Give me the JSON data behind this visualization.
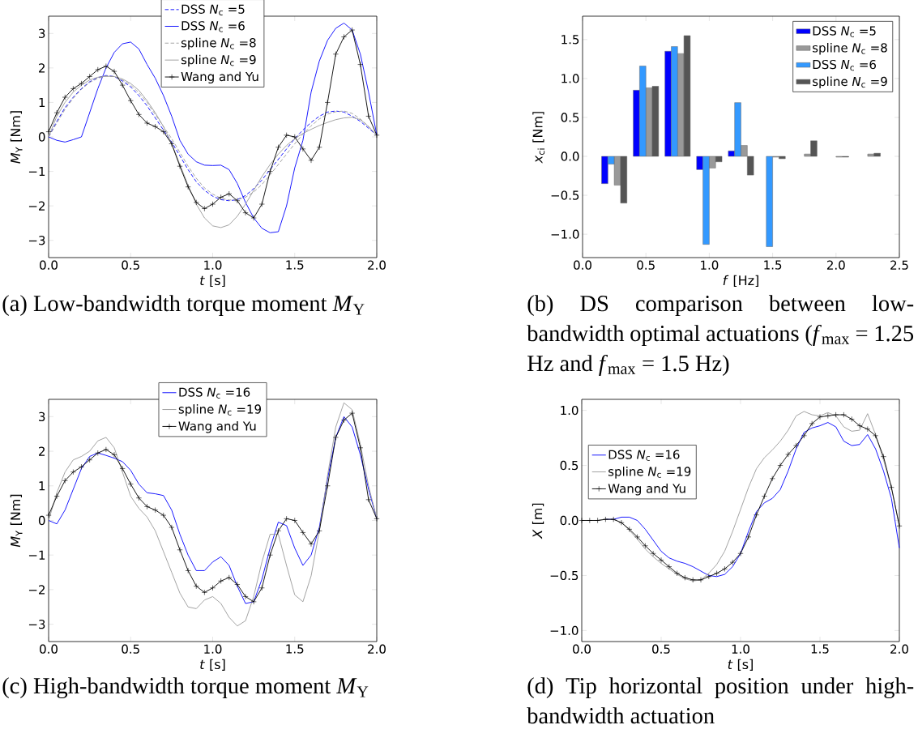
{
  "chart_data": [
    {
      "type": "line",
      "xlabel": "*t* [s]",
      "ylabel": "*M*$_{Y}$ [Nm]",
      "annotations": [
        "(a) Low-bandwidth torque moment *M*$_{Y}$"
      ],
      "xlim": [
        0,
        2
      ],
      "ylim": [
        -3.5,
        3.5
      ],
      "xticks": [
        {
          "value": 0,
          "label": "0.0"
        },
        {
          "value": 0.5,
          "label": "0.5"
        },
        {
          "value": 1,
          "label": "1.0"
        },
        {
          "value": 1.5,
          "label": "1.5"
        },
        {
          "value": 2,
          "label": "2.0"
        }
      ],
      "yticks": [
        {
          "value": -3,
          "label": "−3"
        },
        {
          "value": -2,
          "label": "−2"
        },
        {
          "value": -1,
          "label": "−1"
        },
        {
          "value": 0,
          "label": "0"
        },
        {
          "value": 1,
          "label": "1"
        },
        {
          "value": 2,
          "label": "2"
        },
        {
          "value": 3,
          "label": "3"
        }
      ],
      "legend": "top",
      "x": [
        0,
        0.05,
        0.1,
        0.15,
        0.2,
        0.25,
        0.3,
        0.35,
        0.4,
        0.45,
        0.5,
        0.55,
        0.6,
        0.65,
        0.7,
        0.75,
        0.8,
        0.85,
        0.9,
        0.95,
        1.0,
        1.05,
        1.1,
        1.15,
        1.2,
        1.25,
        1.3,
        1.35,
        1.4,
        1.45,
        1.5,
        1.55,
        1.6,
        1.65,
        1.7,
        1.75,
        1.8,
        1.85,
        1.9,
        1.95,
        2.0
      ],
      "series": [
        {
          "name": "DSS *N*$_{c}$ =5",
          "color": "#0000ff",
          "line_style": "dashed",
          "values": [
            0,
            0.45,
            0.85,
            1.15,
            1.4,
            1.6,
            1.72,
            1.78,
            1.75,
            1.62,
            1.45,
            1.2,
            0.9,
            0.55,
            0.2,
            -0.15,
            -0.55,
            -0.95,
            -1.3,
            -1.55,
            -1.72,
            -1.82,
            -1.85,
            -1.82,
            -1.7,
            -1.5,
            -1.25,
            -0.95,
            -0.65,
            -0.35,
            -0.05,
            0.2,
            0.42,
            0.6,
            0.72,
            0.75,
            0.72,
            0.6,
            0.45,
            0.25,
            0.05
          ]
        },
        {
          "name": "DSS *N*$_{c}$ =6",
          "color": "#0000ff",
          "line_style": "solid",
          "values": [
            0,
            -0.1,
            -0.15,
            -0.08,
            0.0,
            0.7,
            1.4,
            2.0,
            2.45,
            2.7,
            2.75,
            2.55,
            2.1,
            1.7,
            1.2,
            0.6,
            -0.1,
            -0.5,
            -0.72,
            -0.82,
            -0.83,
            -0.82,
            -0.95,
            -1.35,
            -1.9,
            -2.35,
            -2.65,
            -2.78,
            -2.75,
            -2.0,
            -0.9,
            -0.1,
            1.3,
            2.2,
            2.8,
            3.15,
            3.3,
            3.1,
            2.4,
            1.3,
            0.05
          ]
        },
        {
          "name": "spline *N*$_{c}$ =8",
          "color": "#999999",
          "line_style": "dashed",
          "values": [
            0,
            0.4,
            0.8,
            1.12,
            1.38,
            1.58,
            1.7,
            1.76,
            1.75,
            1.65,
            1.5,
            1.28,
            1.0,
            0.65,
            0.3,
            -0.05,
            -0.45,
            -0.85,
            -1.2,
            -1.48,
            -1.66,
            -1.78,
            -1.83,
            -1.82,
            -1.75,
            -1.6,
            -1.38,
            -1.1,
            -0.8,
            -0.5,
            -0.2,
            0.08,
            0.32,
            0.52,
            0.66,
            0.73,
            0.75,
            0.68,
            0.52,
            0.3,
            0.05
          ]
        },
        {
          "name": "spline *N*$_{c}$ =9",
          "color": "#999999",
          "line_style": "solid",
          "values": [
            0,
            0.6,
            1.0,
            1.3,
            1.5,
            1.65,
            1.73,
            1.76,
            1.75,
            1.68,
            1.55,
            1.35,
            1.05,
            0.7,
            0.3,
            -0.2,
            -0.8,
            -1.4,
            -1.95,
            -2.35,
            -2.58,
            -2.63,
            -2.55,
            -2.3,
            -1.95,
            -1.55,
            -1.15,
            -0.8,
            -0.5,
            -0.25,
            -0.05,
            0.1,
            0.22,
            0.33,
            0.42,
            0.5,
            0.55,
            0.57,
            0.5,
            0.3,
            0.05
          ]
        },
        {
          "name": "Wang and Yu",
          "color": "#000000",
          "line_style": "solid",
          "marker": "cross",
          "values": [
            0.15,
            0.7,
            1.15,
            1.4,
            1.55,
            1.75,
            1.95,
            2.05,
            1.9,
            1.5,
            1.05,
            0.65,
            0.4,
            0.3,
            0.15,
            -0.2,
            -0.85,
            -1.45,
            -1.9,
            -2.08,
            -1.95,
            -1.75,
            -1.65,
            -1.85,
            -2.2,
            -2.35,
            -1.95,
            -1.0,
            -0.3,
            0.05,
            0.0,
            -0.35,
            -0.68,
            -0.3,
            1.0,
            2.4,
            2.9,
            3.1,
            2.1,
            0.6,
            0.05
          ]
        }
      ]
    },
    {
      "type": "bar",
      "xlabel": "*f* [Hz]",
      "ylabel": "*x*$_{ci}$ [Nm]",
      "annotations": [
        "(b) DS comparison between low-bandwidth optimal actuations (*f*$_{max}$ = 1.25 Hz and *f*$_{max}$ = 1.5 Hz)"
      ],
      "xlim": [
        0,
        2.5
      ],
      "ylim": [
        -1.3,
        1.8
      ],
      "xticks": [
        {
          "value": 0,
          "label": "0.0"
        },
        {
          "value": 0.5,
          "label": "0.5"
        },
        {
          "value": 1,
          "label": "1.0"
        },
        {
          "value": 1.5,
          "label": "1.5"
        },
        {
          "value": 2,
          "label": "2.0"
        },
        {
          "value": 2.5,
          "label": "2.5"
        }
      ],
      "yticks": [
        {
          "value": -1,
          "label": "−1.0"
        },
        {
          "value": -0.5,
          "label": "−0.5"
        },
        {
          "value": 0,
          "label": "0.0"
        },
        {
          "value": 0.5,
          "label": "0.5"
        },
        {
          "value": 1,
          "label": "1.0"
        },
        {
          "value": 1.5,
          "label": "1.5"
        }
      ],
      "legend": "top right",
      "series": [
        {
          "name": "DSS *N*$_{c}$ =5",
          "color": "#0000ff",
          "x": [
            0.175,
            0.425,
            0.675,
            0.925,
            1.175
          ],
          "values": [
            -0.35,
            0.85,
            1.35,
            -0.17,
            0.07
          ]
        },
        {
          "name": "spline *N*$_{c}$ =8",
          "color": "#999999",
          "x": [
            0.275,
            0.525,
            0.775,
            1.025,
            1.275,
            1.525,
            1.775,
            2.025,
            2.275
          ],
          "values": [
            -0.37,
            0.88,
            1.32,
            -0.15,
            0.14,
            -0.01,
            0.03,
            -0.01,
            0.03
          ]
        },
        {
          "name": "DSS *N*$_{c}$ =6",
          "color": "#3399ff",
          "x": [
            0.225,
            0.475,
            0.725,
            0.975,
            1.225,
            1.475
          ],
          "values": [
            -0.1,
            1.16,
            1.41,
            -1.13,
            0.69,
            -1.16
          ]
        },
        {
          "name": "spline *N*$_{c}$ =9",
          "color": "#555555",
          "x": [
            0.325,
            0.575,
            0.825,
            1.075,
            1.325,
            1.575,
            1.825,
            2.075,
            2.325
          ],
          "values": [
            -0.6,
            0.9,
            1.55,
            -0.07,
            -0.24,
            -0.03,
            0.2,
            -0.01,
            0.04
          ]
        }
      ]
    },
    {
      "type": "line",
      "xlabel": "*t* [s]",
      "ylabel": "*M*$_{Y}$ [Nm]",
      "annotations": [
        "(c) High-bandwidth torque moment *M*$_{Y}$"
      ],
      "xlim": [
        0,
        2
      ],
      "ylim": [
        -3.5,
        3.5
      ],
      "xticks": [
        {
          "value": 0,
          "label": "0.0"
        },
        {
          "value": 0.5,
          "label": "0.5"
        },
        {
          "value": 1,
          "label": "1.0"
        },
        {
          "value": 1.5,
          "label": "1.5"
        },
        {
          "value": 2,
          "label": "2.0"
        }
      ],
      "yticks": [
        {
          "value": -3,
          "label": "−3"
        },
        {
          "value": -2,
          "label": "−2"
        },
        {
          "value": -1,
          "label": "−1"
        },
        {
          "value": 0,
          "label": "0"
        },
        {
          "value": 1,
          "label": "1"
        },
        {
          "value": 2,
          "label": "2"
        },
        {
          "value": 3,
          "label": "3"
        }
      ],
      "legend": "top",
      "x": [
        0,
        0.05,
        0.1,
        0.15,
        0.2,
        0.25,
        0.3,
        0.35,
        0.4,
        0.45,
        0.5,
        0.55,
        0.6,
        0.65,
        0.7,
        0.75,
        0.8,
        0.85,
        0.9,
        0.95,
        1.0,
        1.05,
        1.1,
        1.15,
        1.2,
        1.25,
        1.3,
        1.35,
        1.4,
        1.45,
        1.5,
        1.55,
        1.6,
        1.65,
        1.7,
        1.75,
        1.8,
        1.85,
        1.9,
        1.95,
        2.0
      ],
      "series": [
        {
          "name": "DSS *N*$_{c}$ =16",
          "color": "#0000ff",
          "values": [
            0,
            -0.1,
            0.3,
            0.9,
            1.5,
            1.85,
            1.95,
            1.88,
            1.8,
            1.7,
            1.45,
            1.05,
            0.8,
            0.77,
            0.72,
            0.3,
            -0.4,
            -1.0,
            -1.45,
            -1.45,
            -1.2,
            -1.05,
            -1.3,
            -1.9,
            -2.4,
            -2.35,
            -1.7,
            -0.8,
            -0.05,
            -0.15,
            -0.8,
            -1.3,
            -1.0,
            -0.2,
            1.2,
            2.4,
            3.0,
            2.7,
            1.9,
            0.9,
            0.05
          ]
        },
        {
          "name": "spline *N*$_{c}$ =19",
          "color": "#999999",
          "values": [
            0,
            0.8,
            1.4,
            1.75,
            1.85,
            2.0,
            2.3,
            2.4,
            2.1,
            1.4,
            0.7,
            0.35,
            0.1,
            -0.3,
            -0.9,
            -1.5,
            -2.1,
            -2.5,
            -2.55,
            -2.3,
            -2.2,
            -2.4,
            -2.8,
            -3.05,
            -2.9,
            -2.2,
            -1.2,
            -0.4,
            -0.4,
            -1.3,
            -2.15,
            -2.35,
            -1.6,
            -0.3,
            1.3,
            2.7,
            3.4,
            3.2,
            2.2,
            1.0,
            0.05
          ]
        },
        {
          "name": "Wang and Yu",
          "color": "#000000",
          "marker": "cross",
          "values": [
            0.15,
            0.7,
            1.15,
            1.4,
            1.55,
            1.75,
            1.95,
            2.05,
            1.9,
            1.5,
            1.05,
            0.65,
            0.4,
            0.3,
            0.15,
            -0.2,
            -0.85,
            -1.45,
            -1.9,
            -2.08,
            -1.95,
            -1.75,
            -1.65,
            -1.85,
            -2.2,
            -2.35,
            -1.95,
            -1.0,
            -0.3,
            0.05,
            0.0,
            -0.35,
            -0.68,
            -0.3,
            1.0,
            2.4,
            2.9,
            3.1,
            2.1,
            0.6,
            0.05
          ]
        }
      ]
    },
    {
      "type": "line",
      "xlabel": "*t* [s]",
      "ylabel": "*X* [m]",
      "annotations": [
        "(d) Tip horizontal position under high-bandwidth actuation"
      ],
      "xlim": [
        0,
        2
      ],
      "ylim": [
        -1.1,
        1.1
      ],
      "xticks": [
        {
          "value": 0,
          "label": "0.0"
        },
        {
          "value": 0.5,
          "label": "0.5"
        },
        {
          "value": 1,
          "label": "1.0"
        },
        {
          "value": 1.5,
          "label": "1.5"
        },
        {
          "value": 2,
          "label": "2.0"
        }
      ],
      "yticks": [
        {
          "value": -1,
          "label": "−1.0"
        },
        {
          "value": -0.5,
          "label": "−0.5"
        },
        {
          "value": 0,
          "label": "0.0"
        },
        {
          "value": 0.5,
          "label": "0.5"
        },
        {
          "value": 1,
          "label": "1.0"
        }
      ],
      "legend": "left",
      "x": [
        0,
        0.05,
        0.1,
        0.15,
        0.2,
        0.25,
        0.3,
        0.35,
        0.4,
        0.45,
        0.5,
        0.55,
        0.6,
        0.65,
        0.7,
        0.75,
        0.8,
        0.85,
        0.9,
        0.95,
        1.0,
        1.05,
        1.1,
        1.15,
        1.2,
        1.25,
        1.3,
        1.35,
        1.4,
        1.45,
        1.5,
        1.55,
        1.6,
        1.65,
        1.7,
        1.75,
        1.8,
        1.85,
        1.9,
        1.95,
        2.0
      ],
      "series": [
        {
          "name": "DSS *N*$_{c}$ =16",
          "color": "#0000ff",
          "values": [
            null,
            null,
            null,
            0.01,
            0.01,
            0.03,
            0.03,
            0.0,
            -0.08,
            -0.18,
            -0.28,
            -0.34,
            -0.37,
            -0.39,
            -0.42,
            -0.46,
            -0.5,
            -0.51,
            -0.49,
            -0.42,
            -0.3,
            -0.1,
            0.08,
            0.16,
            0.2,
            0.28,
            0.45,
            0.65,
            0.8,
            0.84,
            0.86,
            0.89,
            0.85,
            0.72,
            0.68,
            0.69,
            0.78,
            0.65,
            0.45,
            0.2,
            -0.25
          ]
        },
        {
          "name": "spline *N*$_{c}$ =19",
          "color": "#999999",
          "values": [
            0,
            0,
            0,
            0.01,
            0.01,
            -0.02,
            -0.09,
            -0.17,
            -0.26,
            -0.33,
            -0.39,
            -0.44,
            -0.49,
            -0.53,
            -0.55,
            -0.54,
            -0.48,
            -0.4,
            -0.28,
            -0.1,
            0.1,
            0.3,
            0.47,
            0.57,
            0.64,
            0.72,
            0.82,
            0.95,
            0.99,
            0.96,
            0.95,
            0.98,
            0.95,
            0.85,
            0.81,
            0.82,
            0.97,
            0.78,
            0.55,
            0.3,
            -0.05
          ]
        },
        {
          "name": "Wang and Yu",
          "color": "#000000",
          "marker": "cross",
          "values": [
            0,
            0,
            0,
            0.01,
            0.01,
            -0.02,
            -0.08,
            -0.15,
            -0.23,
            -0.3,
            -0.36,
            -0.42,
            -0.48,
            -0.52,
            -0.54,
            -0.54,
            -0.51,
            -0.48,
            -0.44,
            -0.38,
            -0.3,
            -0.15,
            0.05,
            0.22,
            0.38,
            0.5,
            0.6,
            0.68,
            0.77,
            0.88,
            0.94,
            0.95,
            0.96,
            0.96,
            0.92,
            0.86,
            0.83,
            0.77,
            0.58,
            0.3,
            -0.05
          ]
        }
      ]
    }
  ]
}
